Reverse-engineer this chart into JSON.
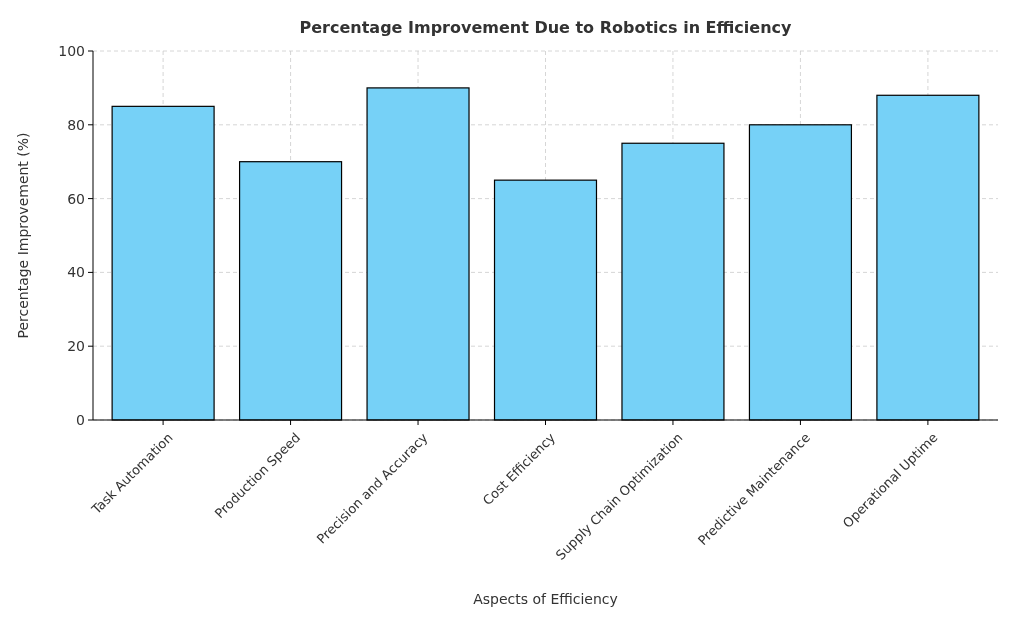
{
  "chart_data": {
    "type": "bar",
    "title": "Percentage Improvement Due to Robotics in Efficiency",
    "xlabel": "Aspects of Efficiency",
    "ylabel": "Percentage Improvement (%)",
    "categories": [
      "Task Automation",
      "Production Speed",
      "Precision and Accuracy",
      "Cost Efficiency",
      "Supply Chain Optimization",
      "Predictive Maintenance",
      "Operational Uptime"
    ],
    "values": [
      85,
      70,
      90,
      65,
      75,
      80,
      88
    ],
    "color": "#76d1f7",
    "ylim": [
      0,
      100
    ],
    "yticks": [
      0,
      20,
      40,
      60,
      80,
      100
    ],
    "grid": true
  }
}
